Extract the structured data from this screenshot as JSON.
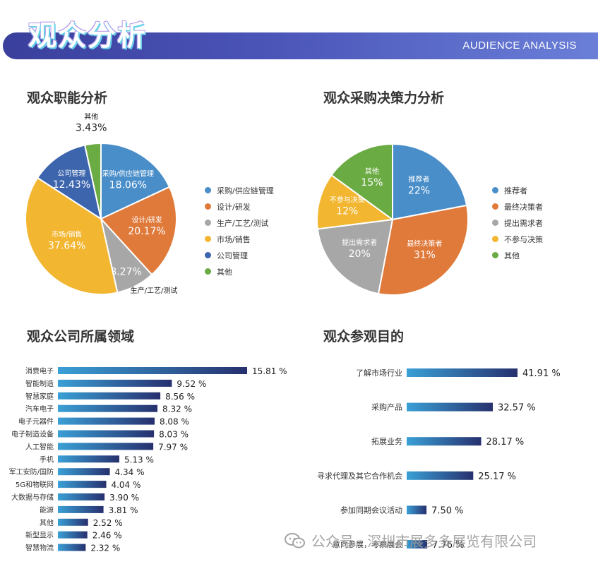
{
  "header": {
    "title": "观众分析",
    "subtitle_en": "AUDIENCE ANALYSIS"
  },
  "colors": {
    "blue": "#4a8ec9",
    "orange": "#e07a3b",
    "gray": "#a7a7a7",
    "yellow": "#f2b630",
    "darkblue": "#3d65ad",
    "green": "#6bab44",
    "bar_start": "#3aa0d6",
    "bar_end": "#27306e"
  },
  "chart_data": [
    {
      "id": "function",
      "type": "pie",
      "title": "观众职能分析",
      "labels": [
        "采购/供应链管理",
        "设计/研发",
        "生产/工艺/测试",
        "市场/销售",
        "公司管理",
        "其他"
      ],
      "slice_labels": [
        "采购/供应链管理",
        "设计/研发",
        "生产/工艺/测试",
        "市场/销售",
        "公司管理",
        "其他"
      ],
      "values": [
        18.06,
        20.17,
        8.27,
        37.64,
        12.43,
        3.43
      ],
      "value_labels": [
        "18.06%",
        "20.17%",
        "8.27%",
        "37.64%",
        "12.43%",
        "3.43%"
      ],
      "colors": [
        "#4a8ec9",
        "#e07a3b",
        "#a7a7a7",
        "#f2b630",
        "#3d65ad",
        "#6bab44"
      ],
      "legend": [
        "采购/供应链管理",
        "设计/研发",
        "生产/工艺/测试",
        "市场/销售",
        "公司管理",
        "其他"
      ],
      "legend_position": "right"
    },
    {
      "id": "decision",
      "type": "pie",
      "title": "观众采购决策力分析",
      "labels": [
        "推荐者",
        "最终决策者",
        "提出需求者",
        "不参与决策",
        "其他"
      ],
      "slice_labels": [
        "推荐者",
        "最终决策者",
        "提出需求者",
        "不参与决策",
        "其他"
      ],
      "values": [
        22,
        31,
        20,
        12,
        15
      ],
      "value_labels": [
        "22%",
        "31%",
        "20%",
        "12%",
        "15%"
      ],
      "colors": [
        "#4a8ec9",
        "#e07a3b",
        "#a7a7a7",
        "#f2b630",
        "#6bab44"
      ],
      "legend": [
        "推荐者",
        "最终决策者",
        "提出需求者",
        "不参与决策",
        "其他"
      ],
      "legend_position": "right"
    },
    {
      "id": "industry",
      "type": "bar",
      "orientation": "horizontal",
      "title": "观众公司所属领域",
      "categories": [
        "消费电子",
        "智能制造",
        "智慧家庭",
        "汽车电子",
        "电子元器件",
        "电子制造设备",
        "人工智能",
        "手机",
        "军工安防/国防",
        "5G和物联网",
        "大数据与存储",
        "能源",
        "其他",
        "新型显示",
        "智慧物流"
      ],
      "values": [
        15.81,
        9.52,
        8.56,
        8.32,
        8.08,
        8.03,
        7.97,
        5.13,
        4.34,
        4.04,
        3.9,
        3.81,
        2.52,
        2.46,
        2.32
      ],
      "value_labels": [
        "15.81 %",
        "9.52 %",
        "8.56 %",
        "8.32 %",
        "8.08 %",
        "8.03 %",
        "7.97 %",
        "5.13 %",
        "4.34 %",
        "4.04 %",
        "3.90 %",
        "3.81 %",
        "2.52 %",
        "2.46 %",
        "2.32 %"
      ],
      "xlim": [
        0,
        15.81
      ]
    },
    {
      "id": "purpose",
      "type": "bar",
      "orientation": "horizontal",
      "title": "观众参观目的",
      "categories": [
        "了解市场行业",
        "采购产品",
        "拓展业务",
        "寻求代理及其它合作机会",
        "参加同期会议活动",
        "意向参展，考察展会"
      ],
      "values": [
        41.91,
        32.57,
        28.17,
        25.17,
        7.5,
        7.76
      ],
      "value_labels": [
        "41.91 %",
        "32.57 %",
        "28.17 %",
        "25.17 %",
        "7.50 %",
        "7.76 %"
      ],
      "xlim": [
        0,
        41.91
      ]
    }
  ],
  "watermark": {
    "text": "公众号 · 深圳市展多多展览有限公司",
    "icon": "wechat-icon"
  }
}
